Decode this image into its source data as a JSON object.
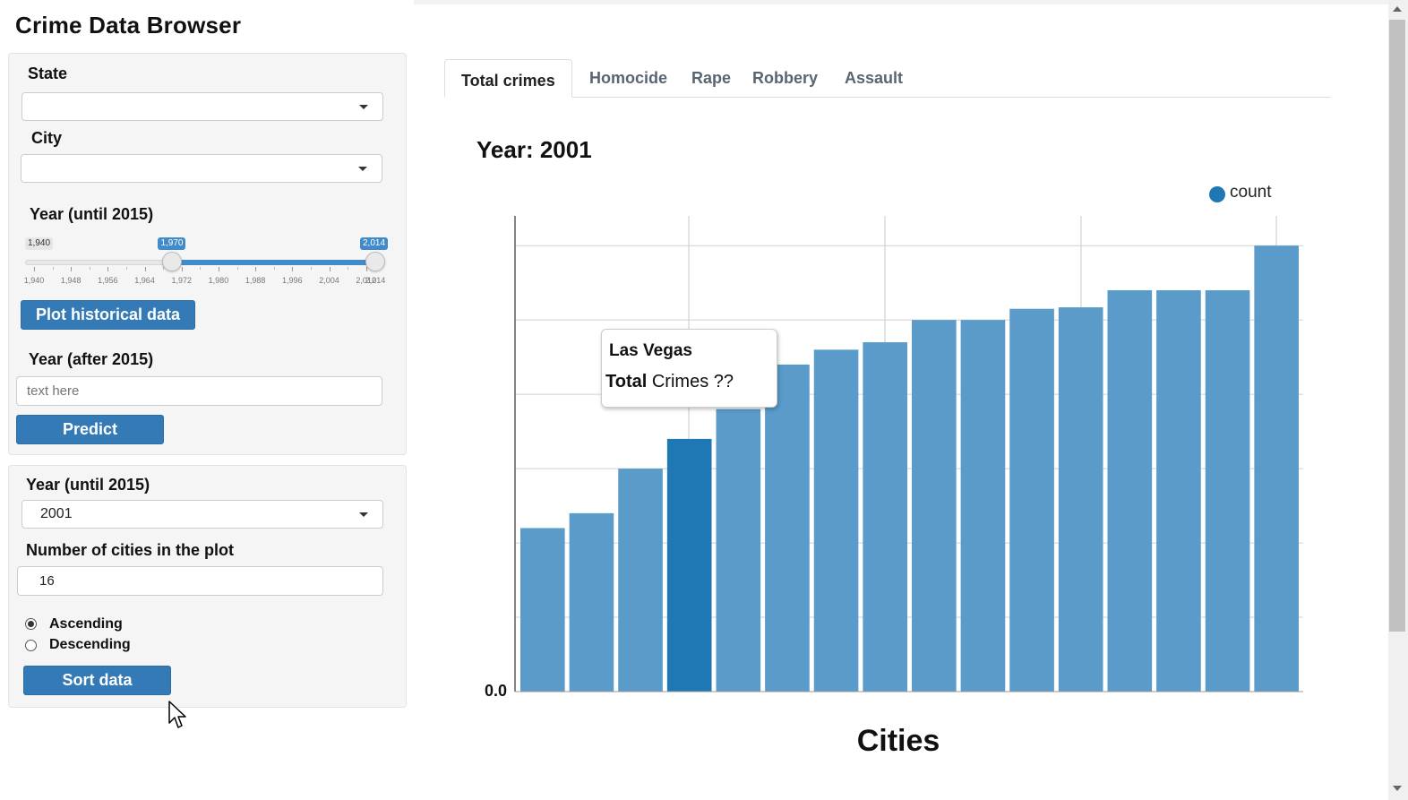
{
  "app": {
    "title": "Crime Data Browser"
  },
  "sidebar": {
    "state": {
      "label": "State",
      "value": ""
    },
    "city": {
      "label": "City",
      "value": ""
    },
    "range_slider": {
      "label": "Year (until 2015)",
      "min": 1940,
      "max": 2014,
      "low": 1970,
      "high": 2014,
      "min_label": "1,940",
      "low_label": "1,970",
      "high_label": "2,014",
      "ticks": [
        "1,940",
        "1,948",
        "1,956",
        "1,964",
        "1,972",
        "1,980",
        "1,988",
        "1,996",
        "2,004",
        "2,012",
        "2,014"
      ]
    },
    "plot_button": "Plot historical data",
    "year_after": {
      "label": "Year (after 2015)",
      "placeholder": "text here"
    },
    "predict_button": "Predict",
    "year_until": {
      "label": "Year (until 2015)",
      "value": "2001"
    },
    "num_cities": {
      "label": "Number of cities in the plot",
      "value": "16"
    },
    "sort_options": [
      {
        "label": "Ascending",
        "checked": true
      },
      {
        "label": "Descending",
        "checked": false
      }
    ],
    "sort_button": "Sort data"
  },
  "tabs": [
    {
      "label": "Total crimes",
      "active": true
    },
    {
      "label": "Homocide",
      "active": false
    },
    {
      "label": "Rape",
      "active": false
    },
    {
      "label": "Robbery",
      "active": false
    },
    {
      "label": "Assault",
      "active": false
    }
  ],
  "chart_data": {
    "type": "bar",
    "title": "Year: 2001",
    "xlabel": "Cities",
    "ylabel": "",
    "y_tick_labels": [
      "0.0"
    ],
    "legend": {
      "label": "count",
      "position": "top-right",
      "color": "#1f77b4"
    },
    "bar_color": "#5a9bca",
    "highlight_color": "#1f77b4",
    "highlight_index": 3,
    "grid": true,
    "ylim": [
      0,
      6.4
    ],
    "values": [
      2.2,
      2.4,
      3.0,
      3.4,
      3.8,
      4.4,
      4.6,
      4.7,
      5.0,
      5.0,
      5.15,
      5.17,
      5.4,
      5.4,
      5.4,
      6.0
    ],
    "tooltip": {
      "city": "Las Vegas",
      "label_bold": "Total",
      "label_rest": "Crimes  ??"
    }
  }
}
